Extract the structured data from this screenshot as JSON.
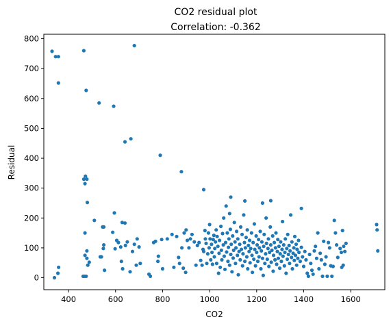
{
  "chart_data": {
    "type": "scatter",
    "title": "CO2 residual plot",
    "subtitle": "Correlation: -0.362",
    "xlabel": "CO2",
    "ylabel": "Residual",
    "xlim": [
      295,
      1745
    ],
    "ylim": [
      -40,
      815
    ],
    "xticks": [
      400,
      600,
      800,
      1000,
      1200,
      1400,
      1600
    ],
    "yticks": [
      0,
      100,
      200,
      300,
      400,
      500,
      600,
      700,
      800
    ],
    "grid": false,
    "legend": "none",
    "colors": {
      "marker": "#1f77b4"
    },
    "points": [
      [
        330,
        758
      ],
      [
        345,
        740
      ],
      [
        357,
        740
      ],
      [
        357,
        652
      ],
      [
        465,
        760
      ],
      [
        475,
        627
      ],
      [
        530,
        585
      ],
      [
        592,
        574
      ],
      [
        640,
        455
      ],
      [
        665,
        465
      ],
      [
        680,
        777
      ],
      [
        790,
        410
      ],
      [
        880,
        355
      ],
      [
        975,
        295
      ],
      [
        1090,
        270
      ],
      [
        1150,
        257
      ],
      [
        1260,
        258
      ],
      [
        1225,
        250
      ],
      [
        1390,
        232
      ],
      [
        1085,
        215
      ],
      [
        340,
        0
      ],
      [
        355,
        15
      ],
      [
        358,
        35
      ],
      [
        462,
        5
      ],
      [
        468,
        5
      ],
      [
        475,
        5
      ],
      [
        470,
        315
      ],
      [
        465,
        330
      ],
      [
        472,
        340
      ],
      [
        478,
        330
      ],
      [
        480,
        252
      ],
      [
        470,
        150
      ],
      [
        478,
        90
      ],
      [
        470,
        75
      ],
      [
        478,
        65
      ],
      [
        482,
        42
      ],
      [
        488,
        52
      ],
      [
        510,
        192
      ],
      [
        545,
        170
      ],
      [
        550,
        170
      ],
      [
        535,
        70
      ],
      [
        540,
        70
      ],
      [
        548,
        98
      ],
      [
        550,
        110
      ],
      [
        553,
        25
      ],
      [
        588,
        152
      ],
      [
        595,
        217
      ],
      [
        598,
        97
      ],
      [
        605,
        125
      ],
      [
        612,
        118
      ],
      [
        622,
        103
      ],
      [
        625,
        55
      ],
      [
        628,
        185
      ],
      [
        630,
        30
      ],
      [
        642,
        108
      ],
      [
        640,
        183
      ],
      [
        650,
        120
      ],
      [
        662,
        20
      ],
      [
        672,
        88
      ],
      [
        680,
        112
      ],
      [
        688,
        42
      ],
      [
        692,
        130
      ],
      [
        700,
        103
      ],
      [
        705,
        48
      ],
      [
        742,
        12
      ],
      [
        748,
        5
      ],
      [
        762,
        118
      ],
      [
        770,
        122
      ],
      [
        780,
        55
      ],
      [
        782,
        72
      ],
      [
        796,
        128
      ],
      [
        800,
        30
      ],
      [
        820,
        130
      ],
      [
        840,
        145
      ],
      [
        848,
        35
      ],
      [
        860,
        138
      ],
      [
        868,
        68
      ],
      [
        872,
        48
      ],
      [
        882,
        100
      ],
      [
        888,
        32
      ],
      [
        892,
        150
      ],
      [
        898,
        18
      ],
      [
        900,
        160
      ],
      [
        905,
        125
      ],
      [
        912,
        100
      ],
      [
        918,
        130
      ],
      [
        925,
        145
      ],
      [
        935,
        120
      ],
      [
        942,
        42
      ],
      [
        948,
        108
      ],
      [
        955,
        118
      ],
      [
        962,
        58
      ],
      [
        968,
        42
      ],
      [
        972,
        95
      ],
      [
        975,
        88
      ],
      [
        980,
        158
      ],
      [
        982,
        130
      ],
      [
        985,
        115
      ],
      [
        988,
        48
      ],
      [
        992,
        80
      ],
      [
        995,
        150
      ],
      [
        998,
        100
      ],
      [
        1000,
        178
      ],
      [
        1002,
        130
      ],
      [
        1005,
        60
      ],
      [
        1008,
        112
      ],
      [
        1010,
        85
      ],
      [
        1012,
        45
      ],
      [
        1015,
        128
      ],
      [
        1018,
        142
      ],
      [
        1020,
        70
      ],
      [
        1022,
        98
      ],
      [
        1025,
        120
      ],
      [
        1028,
        160
      ],
      [
        1030,
        48
      ],
      [
        1032,
        138
      ],
      [
        1035,
        105
      ],
      [
        1038,
        15
      ],
      [
        1040,
        82
      ],
      [
        1042,
        125
      ],
      [
        1045,
        35
      ],
      [
        1048,
        172
      ],
      [
        1050,
        92
      ],
      [
        1052,
        60
      ],
      [
        1055,
        148
      ],
      [
        1058,
        110
      ],
      [
        1060,
        200
      ],
      [
        1062,
        72
      ],
      [
        1065,
        28
      ],
      [
        1068,
        118
      ],
      [
        1070,
        240
      ],
      [
        1072,
        86
      ],
      [
        1075,
        150
      ],
      [
        1078,
        55
      ],
      [
        1080,
        102
      ],
      [
        1082,
        130
      ],
      [
        1085,
        42
      ],
      [
        1088,
        162
      ],
      [
        1090,
        78
      ],
      [
        1092,
        112
      ],
      [
        1095,
        20
      ],
      [
        1098,
        140
      ],
      [
        1100,
        66
      ],
      [
        1102,
        92
      ],
      [
        1105,
        185
      ],
      [
        1108,
        120
      ],
      [
        1110,
        48
      ],
      [
        1112,
        100
      ],
      [
        1115,
        155
      ],
      [
        1118,
        75
      ],
      [
        1120,
        130
      ],
      [
        1122,
        10
      ],
      [
        1125,
        88
      ],
      [
        1128,
        112
      ],
      [
        1130,
        60
      ],
      [
        1132,
        170
      ],
      [
        1135,
        95
      ],
      [
        1138,
        145
      ],
      [
        1140,
        40
      ],
      [
        1142,
        80
      ],
      [
        1145,
        210
      ],
      [
        1148,
        118
      ],
      [
        1150,
        55
      ],
      [
        1152,
        100
      ],
      [
        1155,
        135
      ],
      [
        1158,
        70
      ],
      [
        1160,
        160
      ],
      [
        1162,
        30
      ],
      [
        1165,
        108
      ],
      [
        1168,
        88
      ],
      [
        1170,
        125
      ],
      [
        1172,
        50
      ],
      [
        1175,
        98
      ],
      [
        1178,
        150
      ],
      [
        1180,
        75
      ],
      [
        1182,
        18
      ],
      [
        1185,
        118
      ],
      [
        1188,
        62
      ],
      [
        1190,
        180
      ],
      [
        1192,
        95
      ],
      [
        1195,
        40
      ],
      [
        1198,
        140
      ],
      [
        1200,
        85
      ],
      [
        1202,
        110
      ],
      [
        1205,
        55
      ],
      [
        1208,
        128
      ],
      [
        1210,
        70
      ],
      [
        1212,
        100
      ],
      [
        1215,
        155
      ],
      [
        1218,
        30
      ],
      [
        1220,
        90
      ],
      [
        1222,
        120
      ],
      [
        1225,
        65
      ],
      [
        1228,
        8
      ],
      [
        1230,
        105
      ],
      [
        1232,
        145
      ],
      [
        1235,
        48
      ],
      [
        1238,
        80
      ],
      [
        1240,
        200
      ],
      [
        1242,
        115
      ],
      [
        1245,
        62
      ],
      [
        1248,
        98
      ],
      [
        1250,
        130
      ],
      [
        1252,
        38
      ],
      [
        1255,
        85
      ],
      [
        1258,
        170
      ],
      [
        1260,
        110
      ],
      [
        1262,
        52
      ],
      [
        1265,
        92
      ],
      [
        1268,
        140
      ],
      [
        1270,
        22
      ],
      [
        1272,
        75
      ],
      [
        1275,
        118
      ],
      [
        1278,
        60
      ],
      [
        1280,
        100
      ],
      [
        1282,
        150
      ],
      [
        1285,
        45
      ],
      [
        1288,
        88
      ],
      [
        1290,
        128
      ],
      [
        1292,
        65
      ],
      [
        1295,
        105
      ],
      [
        1298,
        32
      ],
      [
        1300,
        80
      ],
      [
        1302,
        120
      ],
      [
        1305,
        55
      ],
      [
        1308,
        95
      ],
      [
        1310,
        188
      ],
      [
        1312,
        72
      ],
      [
        1315,
        110
      ],
      [
        1318,
        40
      ],
      [
        1320,
        85
      ],
      [
        1322,
        130
      ],
      [
        1325,
        15
      ],
      [
        1328,
        98
      ],
      [
        1330,
        62
      ],
      [
        1332,
        145
      ],
      [
        1335,
        78
      ],
      [
        1338,
        108
      ],
      [
        1340,
        48
      ],
      [
        1342,
        90
      ],
      [
        1345,
        210
      ],
      [
        1348,
        68
      ],
      [
        1350,
        120
      ],
      [
        1352,
        30
      ],
      [
        1355,
        82
      ],
      [
        1358,
        100
      ],
      [
        1360,
        58
      ],
      [
        1362,
        138
      ],
      [
        1365,
        75
      ],
      [
        1368,
        112
      ],
      [
        1370,
        42
      ],
      [
        1372,
        95
      ],
      [
        1375,
        65
      ],
      [
        1378,
        125
      ],
      [
        1380,
        85
      ],
      [
        1385,
        55
      ],
      [
        1390,
        102
      ],
      [
        1395,
        70
      ],
      [
        1400,
        38
      ],
      [
        1405,
        88
      ],
      [
        1410,
        60
      ],
      [
        1415,
        15
      ],
      [
        1420,
        5
      ],
      [
        1425,
        78
      ],
      [
        1430,
        48
      ],
      [
        1435,
        25
      ],
      [
        1440,
        12
      ],
      [
        1445,
        90
      ],
      [
        1450,
        105
      ],
      [
        1455,
        65
      ],
      [
        1460,
        150
      ],
      [
        1465,
        30
      ],
      [
        1470,
        82
      ],
      [
        1475,
        60
      ],
      [
        1480,
        5
      ],
      [
        1485,
        122
      ],
      [
        1490,
        45
      ],
      [
        1495,
        70
      ],
      [
        1500,
        5
      ],
      [
        1505,
        118
      ],
      [
        1510,
        100
      ],
      [
        1515,
        40
      ],
      [
        1520,
        5
      ],
      [
        1525,
        38
      ],
      [
        1530,
        192
      ],
      [
        1535,
        150
      ],
      [
        1540,
        110
      ],
      [
        1545,
        68
      ],
      [
        1555,
        98
      ],
      [
        1560,
        85
      ],
      [
        1562,
        35
      ],
      [
        1565,
        158
      ],
      [
        1568,
        42
      ],
      [
        1570,
        105
      ],
      [
        1575,
        88
      ],
      [
        1580,
        115
      ],
      [
        1710,
        178
      ],
      [
        1712,
        160
      ],
      [
        1715,
        90
      ]
    ]
  }
}
